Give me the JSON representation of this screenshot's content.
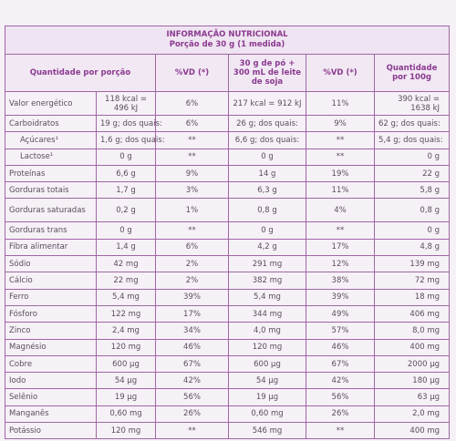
{
  "table": {
    "title": "INFORMAÇÃO NUTRICIONAL",
    "subtitle": "Porção de 30 g (1 medida)",
    "header": [
      "Quantidade por porção",
      "%VD (*)",
      "30 g de pó + 300 mL de leite de soja",
      "%VD (*)",
      "Quantidade por 100g"
    ],
    "rows": [
      [
        "Valor energético",
        "118 kcal = 496 kJ",
        "6%",
        "217 kcal = 912 kJ",
        "11%",
        "390 kcal = 1638 kJ"
      ],
      [
        "Carboidratos",
        "19 g; dos quais:",
        "6%",
        "26 g; dos quais:",
        "9%",
        "62 g; dos quais:"
      ],
      [
        "Açúcares¹",
        "1,6 g; dos quais:",
        "**",
        "6,6 g; dos quais:",
        "**",
        "5,4 g; dos quais:"
      ],
      [
        "Lactose¹",
        "0 g",
        "**",
        "0 g",
        "**",
        "0 g"
      ],
      [
        "Proteínas",
        "6,6 g",
        "9%",
        "14 g",
        "19%",
        "22 g"
      ],
      [
        "Gorduras totais",
        "1,7 g",
        "3%",
        "6,3 g",
        "11%",
        "5,8 g"
      ],
      [
        "Gorduras saturadas",
        "0,2 g",
        "1%",
        "0,8 g",
        "4%",
        "0,8 g"
      ],
      [
        "Gorduras trans",
        "0 g",
        "**",
        "0 g",
        "**",
        "0 g"
      ],
      [
        "Fibra alimentar",
        "1,4 g",
        "6%",
        "4,2 g",
        "17%",
        "4,8 g"
      ],
      [
        "Sódio",
        "42 mg",
        "2%",
        "291 mg",
        "12%",
        "139 mg"
      ],
      [
        "Cálcio",
        "22 mg",
        "2%",
        "382 mg",
        "38%",
        "72 mg"
      ],
      [
        "Ferro",
        "5,4 mg",
        "39%",
        "5,4 mg",
        "39%",
        "18 mg"
      ],
      [
        "Fósforo",
        "122 mg",
        "17%",
        "344 mg",
        "49%",
        "406 mg"
      ],
      [
        "Zinco",
        "2,4 mg",
        "34%",
        "4,0 mg",
        "57%",
        "8,0 mg"
      ],
      [
        "Magnésio",
        "120 mg",
        "46%",
        "120 mg",
        "46%",
        "400 mg"
      ],
      [
        "Cobre",
        "600 µg",
        "67%",
        "600 µg",
        "67%",
        "2000 µg"
      ],
      [
        "Iodo",
        "54 µg",
        "42%",
        "54 µg",
        "42%",
        "180 µg"
      ],
      [
        "Selênio",
        "19 µg",
        "56%",
        "19 µg",
        "56%",
        "63 µg"
      ],
      [
        "Manganês",
        "0,60 mg",
        "26%",
        "0,60 mg",
        "26%",
        "2,0 mg"
      ],
      [
        "Potássio",
        "120 mg",
        "**",
        "546 mg",
        "**",
        "400 mg"
      ]
    ]
  }
}
